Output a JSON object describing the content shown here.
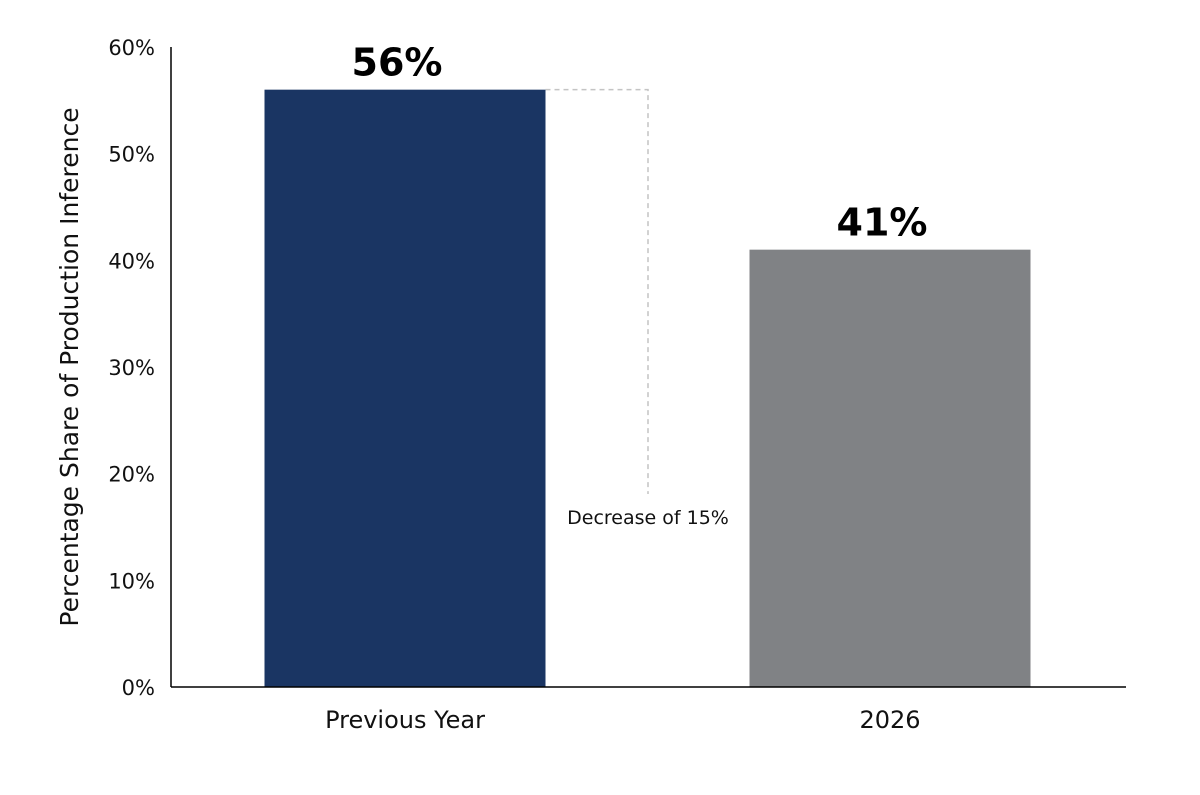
{
  "chart_data": {
    "type": "bar",
    "categories": [
      "Previous Year",
      "2026"
    ],
    "values": [
      56,
      41
    ],
    "data_labels": [
      "56%",
      "41%"
    ],
    "colors": [
      "#1a3563",
      "#808285"
    ],
    "title": "",
    "xlabel": "",
    "ylabel": "Percentage Share of Production Inference",
    "ylim": [
      0,
      60
    ],
    "yticks": [
      0,
      10,
      20,
      30,
      40,
      50,
      60
    ],
    "ytick_labels": [
      "0%",
      "10%",
      "20%",
      "30%",
      "40%",
      "50%",
      "60%"
    ],
    "grid": false,
    "legend": "none",
    "annotation": {
      "text": "Decrease of 15%",
      "from_value": 56,
      "to_value": 41
    }
  }
}
